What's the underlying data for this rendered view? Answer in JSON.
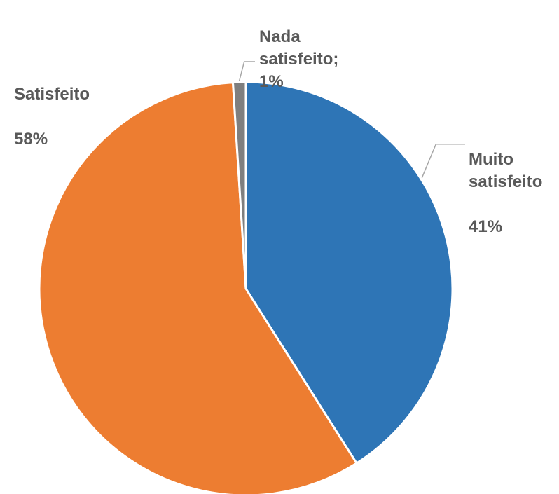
{
  "chart_data": {
    "type": "pie",
    "title": "",
    "slices": [
      {
        "label": "Muito\nsatisfeito",
        "value": 41,
        "value_text": "41%",
        "color": "#2E75B6"
      },
      {
        "label": "Satisfeito",
        "value": 58,
        "value_text": "58%",
        "color": "#ED7D31"
      },
      {
        "label": "Nada\nsatisfeito;",
        "value": 1,
        "value_text": "1%",
        "color": "#7F7F7F"
      }
    ],
    "slice_order": "clockwise from top",
    "legend": "none",
    "leader_line_color": "#A6A6A6",
    "label_color": "#595959"
  }
}
